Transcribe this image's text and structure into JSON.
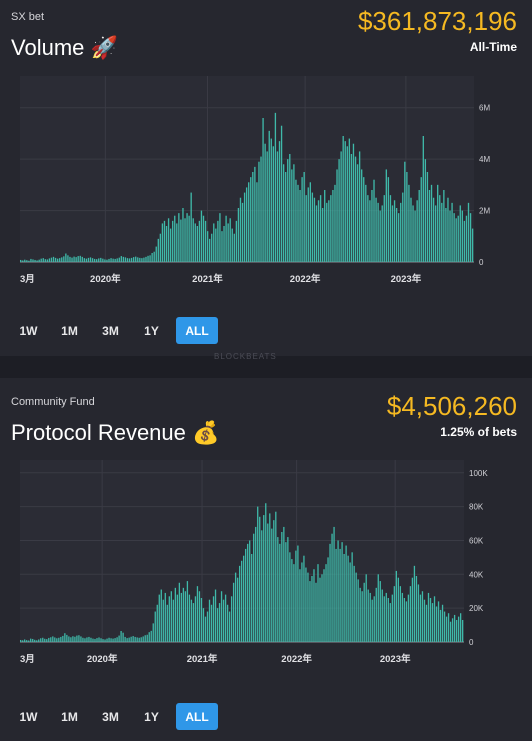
{
  "colors": {
    "accent": "#f5b922",
    "bar": "#3fb9a9",
    "active_button": "#2f97e8",
    "background": "#26272f",
    "chart_bg": "#2b2c35",
    "grid": "#3a3b45"
  },
  "watermark": "BLOCKBEATS",
  "cards": [
    {
      "subtitle": "SX bet",
      "title": "Volume",
      "title_icon": "rocket-icon",
      "title_emoji": "🚀",
      "amount": "$361,873,196",
      "caption": "All-Time",
      "buttons": [
        "1W",
        "1M",
        "3M",
        "1Y",
        "ALL"
      ],
      "active_button": "ALL",
      "chart_data": {
        "type": "bar",
        "x_tick_labels": [
          "3月",
          "2020年",
          "2021年",
          "2022年",
          "2023年"
        ],
        "y_tick_labels": [
          "0",
          "2M",
          "4M",
          "6M"
        ],
        "ylim": [
          0,
          7000000
        ],
        "y_axis_position": "right",
        "grid": true,
        "series_note": "weekly volume, approx. values sampled across period",
        "values": [
          80000,
          60000,
          90000,
          70000,
          50000,
          120000,
          100000,
          80000,
          60000,
          90000,
          130000,
          150000,
          110000,
          100000,
          140000,
          170000,
          200000,
          160000,
          130000,
          150000,
          180000,
          220000,
          330000,
          260000,
          200000,
          170000,
          210000,
          190000,
          230000,
          240000,
          200000,
          150000,
          130000,
          160000,
          180000,
          150000,
          120000,
          110000,
          140000,
          160000,
          130000,
          100000,
          90000,
          120000,
          150000,
          130000,
          120000,
          140000,
          170000,
          230000,
          200000,
          180000,
          150000,
          140000,
          160000,
          190000,
          210000,
          180000,
          160000,
          150000,
          170000,
          200000,
          240000,
          260000,
          350000,
          400000,
          600000,
          900000,
          1100000,
          1500000,
          1600000,
          1400000,
          1700000,
          1300000,
          1600000,
          1800000,
          1500000,
          1900000,
          1650000,
          2100000,
          1700000,
          1900000,
          1800000,
          2700000,
          1700000,
          1500000,
          1400000,
          1600000,
          2000000,
          1800000,
          1600000,
          1200000,
          900000,
          1100000,
          1500000,
          1300000,
          1600000,
          1900000,
          1200000,
          1400000,
          1800000,
          1500000,
          1700000,
          1300000,
          1100000,
          1600000,
          2100000,
          2500000,
          2300000,
          2700000,
          2900000,
          3100000,
          3300000,
          3500000,
          3700000,
          3100000,
          3900000,
          4100000,
          5600000,
          4600000,
          4300000,
          5100000,
          4800000,
          4500000,
          5800000,
          4300000,
          4700000,
          5300000,
          3800000,
          3500000,
          4000000,
          4200000,
          3600000,
          3800000,
          3200000,
          3000000,
          2800000,
          3300000,
          3500000,
          2600000,
          2900000,
          3100000,
          2700000,
          2500000,
          2200000,
          2400000,
          2600000,
          2100000,
          2800000,
          2300000,
          2400000,
          2600000,
          2800000,
          3000000,
          3600000,
          4000000,
          4300000,
          4900000,
          4700000,
          4500000,
          4800000,
          4200000,
          4600000,
          4100000,
          3800000,
          4300000,
          3600000,
          3300000,
          3000000,
          2600000,
          2400000,
          2800000,
          3200000,
          2500000,
          2300000,
          2000000,
          2200000,
          2600000,
          3600000,
          3300000,
          2600000,
          2200000,
          2400000,
          2100000,
          1900000,
          2300000,
          2700000,
          3900000,
          3500000,
          3000000,
          2500000,
          2200000,
          2000000,
          2400000,
          2800000,
          3300000,
          4900000,
          4000000,
          3500000,
          2800000,
          3000000,
          2500000,
          2200000,
          3000000,
          2600000,
          2300000,
          2800000,
          2100000,
          2500000,
          2000000,
          2300000,
          1900000,
          1700000,
          1800000,
          2200000,
          2000000,
          1600000,
          1800000,
          2300000,
          1900000,
          1300000
        ]
      }
    },
    {
      "subtitle": "Community Fund",
      "title": "Protocol Revenue",
      "title_icon": "money-bag-icon",
      "title_emoji": "💰",
      "amount": "$4,506,260",
      "caption": "1.25% of bets",
      "buttons": [
        "1W",
        "1M",
        "3M",
        "1Y",
        "ALL"
      ],
      "active_button": "ALL",
      "chart_data": {
        "type": "bar",
        "x_tick_labels": [
          "3月",
          "2020年",
          "2021年",
          "2022年",
          "2023年"
        ],
        "y_tick_labels": [
          "0",
          "20K",
          "40K",
          "60K",
          "80K",
          "100K"
        ],
        "ylim": [
          0,
          104000
        ],
        "y_axis_position": "right",
        "grid": true,
        "series_note": "weekly protocol revenue, approx. values sampled across period",
        "values": [
          1200,
          1000,
          1500,
          1100,
          900,
          2000,
          1800,
          1300,
          1000,
          1500,
          2200,
          2500,
          1900,
          1700,
          2400,
          2800,
          3300,
          2700,
          2200,
          2500,
          3000,
          3600,
          5200,
          4200,
          3300,
          2800,
          3400,
          3100,
          3800,
          4000,
          3300,
          2500,
          2200,
          2700,
          3000,
          2500,
          2000,
          1800,
          2300,
          2700,
          2200,
          1700,
          1500,
          2000,
          2500,
          2200,
          2000,
          2300,
          2800,
          3800,
          6500,
          5500,
          3000,
          2300,
          2600,
          3100,
          3500,
          3000,
          2700,
          2500,
          2800,
          3300,
          4000,
          4300,
          5800,
          6600,
          11000,
          18000,
          22000,
          28000,
          31000,
          25000,
          29000,
          22000,
          27000,
          30000,
          25000,
          32000,
          28000,
          35000,
          29000,
          32000,
          30000,
          36000,
          28000,
          25000,
          23000,
          27000,
          33000,
          30000,
          26000,
          20000,
          15000,
          18000,
          25000,
          22000,
          27000,
          31000,
          20000,
          23000,
          30000,
          25000,
          28000,
          22000,
          18000,
          27000,
          35000,
          41000,
          38000,
          45000,
          48000,
          51000,
          55000,
          58000,
          60000,
          52000,
          64000,
          68000,
          80000,
          74000,
          66000,
          75000,
          82000,
          70000,
          76000,
          67000,
          72000,
          77000,
          62000,
          58000,
          65000,
          68000,
          59000,
          62000,
          53000,
          49000,
          46000,
          54000,
          57000,
          43000,
          47000,
          51000,
          44000,
          41000,
          36000,
          39000,
          43000,
          35000,
          46000,
          38000,
          40000,
          43000,
          46000,
          50000,
          58000,
          64000,
          68000,
          55000,
          60000,
          55000,
          59000,
          52000,
          57000,
          51000,
          47000,
          53000,
          45000,
          41000,
          37000,
          32000,
          30000,
          35000,
          40000,
          31000,
          29000,
          25000,
          27000,
          32000,
          40000,
          36000,
          31000,
          27000,
          29000,
          26000,
          23000,
          28000,
          33000,
          42000,
          38000,
          33000,
          29000,
          26000,
          24000,
          28000,
          33000,
          38000,
          45000,
          39000,
          34000,
          28000,
          30000,
          25000,
          22000,
          29000,
          26000,
          23000,
          27000,
          21000,
          24000,
          19000,
          22000,
          18000,
          15000,
          17000,
          12000,
          14000,
          16000,
          13000,
          15000,
          17000,
          13000
        ]
      }
    }
  ]
}
